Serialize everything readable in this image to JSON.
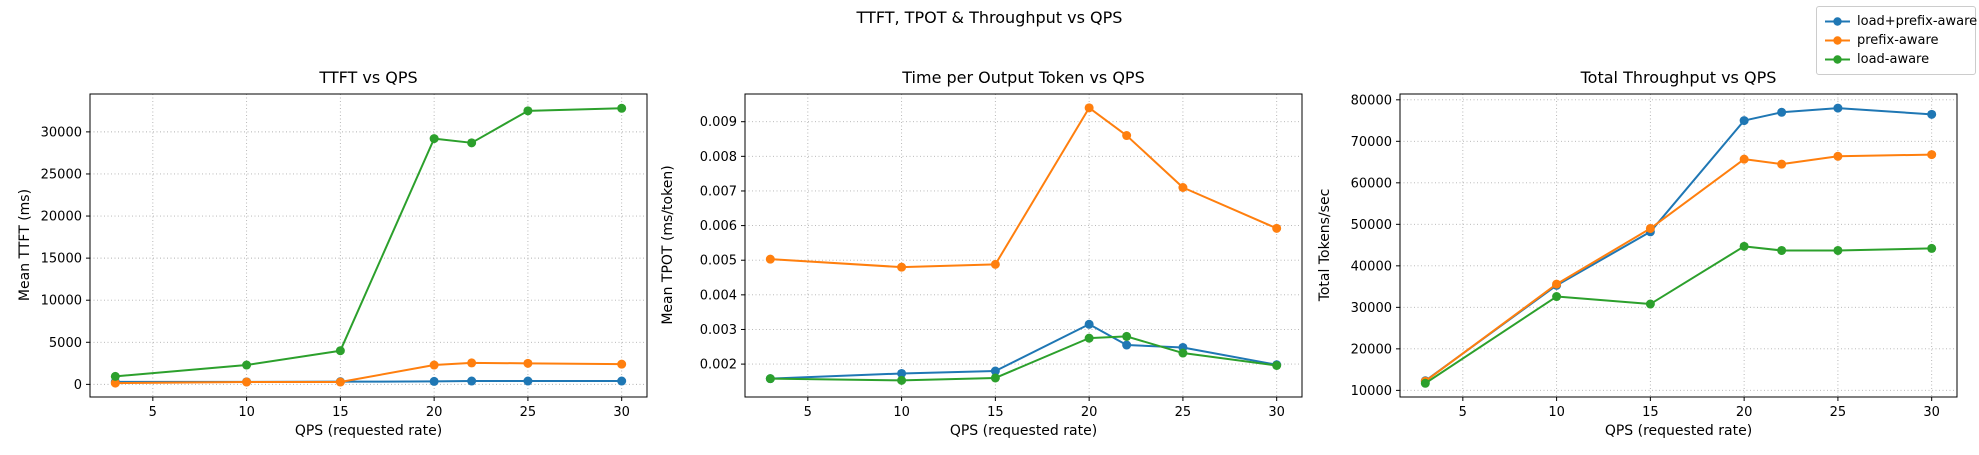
{
  "figure": {
    "suptitle": "TTFT, TPOT & Throughput vs QPS",
    "background_color": "#ffffff",
    "text_color": "#000000",
    "grid_color": "#b0b0b0"
  },
  "legend": {
    "position": "top-right",
    "entries": [
      {
        "label": "load+prefix-aware",
        "color": "#1f77b4"
      },
      {
        "label": "prefix-aware",
        "color": "#ff7f0e"
      },
      {
        "label": "load-aware",
        "color": "#2ca02c"
      }
    ]
  },
  "chart_data": [
    {
      "id": "ttft",
      "type": "line",
      "title": "TTFT vs QPS",
      "xlabel": "QPS (requested rate)",
      "ylabel": "Mean TTFT (ms)",
      "grid": true,
      "marker": "o",
      "x": [
        3,
        10,
        15,
        20,
        22,
        25,
        30
      ],
      "xticks": [
        5,
        10,
        15,
        20,
        25,
        30
      ],
      "yticks": [
        0,
        5000,
        10000,
        15000,
        20000,
        25000,
        30000
      ],
      "ytick_labels": [
        "0",
        "5000",
        "10000",
        "15000",
        "20000",
        "25000",
        "30000"
      ],
      "xlim": [
        1.65,
        31.35
      ],
      "ylim": [
        -1500,
        34500
      ],
      "series": [
        {
          "name": "load+prefix-aware",
          "color": "#1f77b4",
          "values": [
            300,
            300,
            320,
            350,
            400,
            400,
            400
          ]
        },
        {
          "name": "prefix-aware",
          "color": "#ff7f0e",
          "values": [
            150,
            280,
            280,
            2300,
            2550,
            2500,
            2400
          ]
        },
        {
          "name": "load-aware",
          "color": "#2ca02c",
          "values": [
            950,
            2300,
            4000,
            29200,
            28700,
            32500,
            32800
          ]
        }
      ]
    },
    {
      "id": "tpot",
      "type": "line",
      "title": "Time per Output Token vs QPS",
      "xlabel": "QPS (requested rate)",
      "ylabel": "Mean TPOT (ms/token)",
      "grid": true,
      "marker": "o",
      "x": [
        3,
        10,
        15,
        20,
        22,
        25,
        30
      ],
      "xticks": [
        5,
        10,
        15,
        20,
        25,
        30
      ],
      "yticks": [
        0.002,
        0.003,
        0.004,
        0.005,
        0.006,
        0.007,
        0.008,
        0.009
      ],
      "ytick_labels": [
        "0.002",
        "0.003",
        "0.004",
        "0.005",
        "0.006",
        "0.007",
        "0.008",
        "0.009"
      ],
      "xlim": [
        1.65,
        31.35
      ],
      "ylim": [
        0.00105,
        0.0098
      ],
      "series": [
        {
          "name": "load+prefix-aware",
          "color": "#1f77b4",
          "values": [
            0.00158,
            0.00173,
            0.0018,
            0.00315,
            0.00255,
            0.00248,
            0.00198
          ]
        },
        {
          "name": "prefix-aware",
          "color": "#ff7f0e",
          "values": [
            0.00503,
            0.0048,
            0.00488,
            0.0094,
            0.0086,
            0.0071,
            0.00592
          ]
        },
        {
          "name": "load-aware",
          "color": "#2ca02c",
          "values": [
            0.00158,
            0.00153,
            0.0016,
            0.00275,
            0.0028,
            0.00232,
            0.00196
          ]
        }
      ]
    },
    {
      "id": "throughput",
      "type": "line",
      "title": "Total Throughput vs QPS",
      "xlabel": "QPS (requested rate)",
      "ylabel": "Total Tokens/sec",
      "grid": true,
      "marker": "o",
      "x": [
        3,
        10,
        15,
        20,
        22,
        25,
        30
      ],
      "xticks": [
        5,
        10,
        15,
        20,
        25,
        30
      ],
      "yticks": [
        10000,
        20000,
        30000,
        40000,
        50000,
        60000,
        70000,
        80000
      ],
      "ytick_labels": [
        "10000",
        "20000",
        "30000",
        "40000",
        "50000",
        "60000",
        "70000",
        "80000"
      ],
      "xlim": [
        1.65,
        31.35
      ],
      "ylim": [
        8400,
        81400
      ],
      "series": [
        {
          "name": "load+prefix-aware",
          "color": "#1f77b4",
          "values": [
            12300,
            35300,
            48200,
            75000,
            77000,
            78000,
            76500
          ]
        },
        {
          "name": "prefix-aware",
          "color": "#ff7f0e",
          "values": [
            12200,
            35600,
            49000,
            65700,
            64500,
            66400,
            66800
          ]
        },
        {
          "name": "load-aware",
          "color": "#2ca02c",
          "values": [
            11700,
            32600,
            30800,
            44700,
            43700,
            43700,
            44200
          ]
        }
      ]
    }
  ]
}
